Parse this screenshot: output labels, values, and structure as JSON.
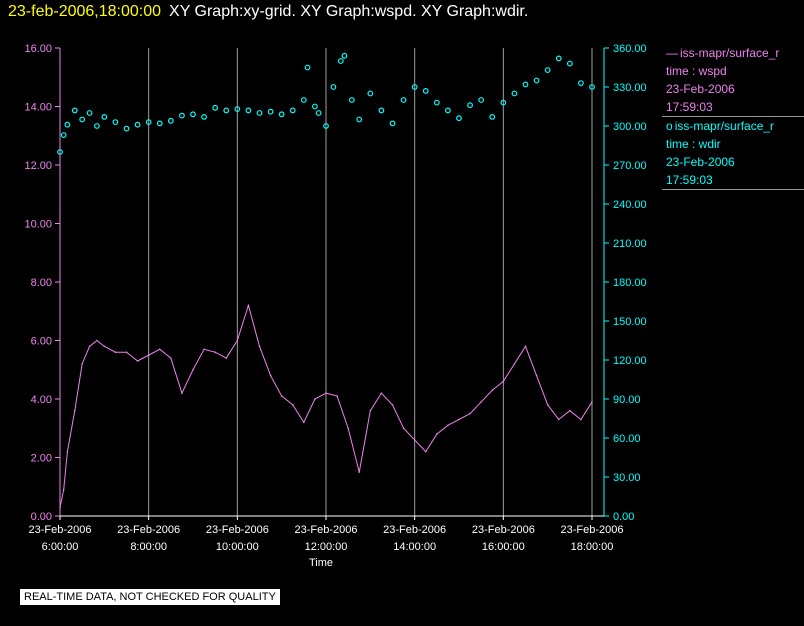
{
  "header": {
    "datetime": "23-feb-2006,18:00:00",
    "graphs": "XY Graph:xy-grid.  XY Graph:wspd.  XY Graph:wdir."
  },
  "legend": {
    "wspd": {
      "symbol": "—",
      "series": "iss-mapr/surface_r",
      "label": "time : wspd",
      "date": "23-Feb-2006",
      "time": "17:59:03"
    },
    "wdir": {
      "symbol": "o",
      "series": "iss-mapr/surface_r",
      "label": "time : wdir",
      "date": "23-Feb-2006",
      "time": "17:59:03"
    }
  },
  "footer": {
    "text": "REAL-TIME DATA, NOT CHECKED FOR QUALITY"
  },
  "colors": {
    "wspd": "#ee82ee",
    "wdir": "#00ffff",
    "grid": "#a0a0a0",
    "axis_text": "#ffffff",
    "header_date": "#ffff00"
  },
  "chart_data": {
    "type": "line",
    "xlabel": "Time",
    "x_ticks": [
      {
        "value": "06:00",
        "date": "23-Feb-2006",
        "time": "6:00:00"
      },
      {
        "value": "08:00",
        "date": "23-Feb-2006",
        "time": "8:00:00"
      },
      {
        "value": "10:00",
        "date": "23-Feb-2006",
        "time": "10:00:00"
      },
      {
        "value": "12:00",
        "date": "23-Feb-2006",
        "time": "12:00:00"
      },
      {
        "value": "14:00",
        "date": "23-Feb-2006",
        "time": "14:00:00"
      },
      {
        "value": "16:00",
        "date": "23-Feb-2006",
        "time": "16:00:00"
      },
      {
        "value": "18:00",
        "date": "23-Feb-2006",
        "time": "18:00:00"
      }
    ],
    "xlim": [
      "06:00",
      "18:00"
    ],
    "grid": "vertical lines at each x tick",
    "y_left": {
      "ylim": [
        0,
        16
      ],
      "ticks": [
        "0.00",
        "2.00",
        "4.00",
        "6.00",
        "8.00",
        "10.00",
        "12.00",
        "14.00",
        "16.00"
      ]
    },
    "y_right": {
      "ylim": [
        0,
        360
      ],
      "ticks": [
        "0.00",
        "30.00",
        "60.00",
        "90.00",
        "120.00",
        "150.00",
        "180.00",
        "210.00",
        "240.00",
        "270.00",
        "300.00",
        "330.00",
        "360.00"
      ]
    },
    "series": [
      {
        "axis": "left",
        "style": "line",
        "x": [
          "06:00",
          "06:05",
          "06:10",
          "06:20",
          "06:30",
          "06:40",
          "06:50",
          "07:00",
          "07:15",
          "07:30",
          "07:45",
          "08:00",
          "08:15",
          "08:30",
          "08:45",
          "09:00",
          "09:15",
          "09:30",
          "09:45",
          "10:00",
          "10:15",
          "10:30",
          "10:45",
          "11:00",
          "11:15",
          "11:30",
          "11:45",
          "12:00",
          "12:15",
          "12:30",
          "12:45",
          "13:00",
          "13:15",
          "13:30",
          "13:45",
          "14:00",
          "14:15",
          "14:30",
          "14:45",
          "15:00",
          "15:15",
          "15:30",
          "15:45",
          "16:00",
          "16:15",
          "16:30",
          "16:45",
          "17:00",
          "17:15",
          "17:30",
          "17:45",
          "18:00"
        ],
        "y": [
          0.3,
          0.9,
          2.2,
          3.6,
          5.2,
          5.8,
          6.0,
          5.8,
          5.6,
          5.6,
          5.3,
          5.5,
          5.7,
          5.4,
          4.2,
          5.0,
          5.7,
          5.6,
          5.4,
          6.0,
          7.2,
          5.8,
          4.8,
          4.1,
          3.8,
          3.2,
          4.0,
          4.2,
          4.1,
          3.0,
          1.5,
          3.6,
          4.2,
          3.8,
          3.0,
          2.6,
          2.2,
          2.8,
          3.1,
          3.3,
          3.5,
          3.9,
          4.3,
          4.6,
          5.2,
          5.8,
          4.8,
          3.8,
          3.3,
          3.6,
          3.3,
          3.9
        ]
      },
      {
        "axis": "right",
        "style": "circle",
        "x": [
          "06:00",
          "06:05",
          "06:10",
          "06:20",
          "06:30",
          "06:40",
          "06:50",
          "07:00",
          "07:15",
          "07:30",
          "07:45",
          "08:00",
          "08:15",
          "08:30",
          "08:45",
          "09:00",
          "09:15",
          "09:30",
          "09:45",
          "10:00",
          "10:15",
          "10:30",
          "10:45",
          "11:00",
          "11:15",
          "11:30",
          "11:35",
          "11:45",
          "11:50",
          "12:00",
          "12:10",
          "12:20",
          "12:25",
          "12:35",
          "12:45",
          "13:00",
          "13:15",
          "13:30",
          "13:45",
          "14:00",
          "14:15",
          "14:30",
          "14:45",
          "15:00",
          "15:15",
          "15:30",
          "15:45",
          "16:00",
          "16:15",
          "16:30",
          "16:45",
          "17:00",
          "17:15",
          "17:30",
          "17:45",
          "18:00"
        ],
        "y": [
          280,
          293,
          301,
          312,
          305,
          310,
          300,
          307,
          303,
          298,
          301,
          303,
          302,
          304,
          308,
          309,
          307,
          314,
          312,
          313,
          312,
          310,
          311,
          309,
          312,
          320,
          345,
          315,
          310,
          300,
          330,
          350,
          354,
          320,
          305,
          325,
          312,
          302,
          320,
          330,
          327,
          318,
          312,
          306,
          316,
          320,
          307,
          318,
          325,
          332,
          335,
          343,
          352,
          348,
          333,
          330
        ]
      }
    ]
  }
}
